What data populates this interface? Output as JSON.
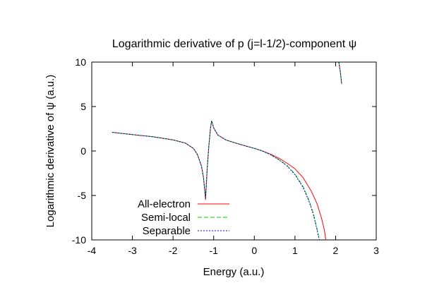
{
  "chart_data": {
    "type": "line",
    "title": "Logarithmic derivative of p (j=l-1/2)-component ψ",
    "xlabel": "Energy (a.u.)",
    "ylabel": "Logarithmic derivative of ψ (a.u.)",
    "xlim": [
      -4,
      3
    ],
    "ylim": [
      -10,
      10
    ],
    "xticks": [
      -4,
      -3,
      -2,
      -1,
      0,
      1,
      2,
      3
    ],
    "yticks": [
      -10,
      -5,
      0,
      5,
      10
    ],
    "xtick_labels": [
      "-4",
      "-3",
      "-2",
      "-1",
      "0",
      "1",
      "2",
      "3"
    ],
    "ytick_labels": [
      "-10",
      "-5",
      "0",
      "5",
      "10"
    ],
    "grid": false,
    "legend_position": "bottom-left",
    "series": [
      {
        "name": "All-electron",
        "color": "#ff0000",
        "dash": "solid",
        "segments": [
          [
            [
              -3.5,
              2.1
            ],
            [
              -3.0,
              1.85
            ],
            [
              -2.5,
              1.6
            ],
            [
              -2.0,
              1.25
            ],
            [
              -1.7,
              0.9
            ],
            [
              -1.5,
              0.3
            ],
            [
              -1.4,
              -0.4
            ],
            [
              -1.3,
              -1.7
            ],
            [
              -1.25,
              -3.0
            ],
            [
              -1.2,
              -5.5
            ],
            [
              -1.16,
              -2.0
            ],
            [
              -1.12,
              0.5
            ],
            [
              -1.08,
              2.5
            ],
            [
              -1.05,
              3.4
            ],
            [
              -1.0,
              2.6
            ],
            [
              -0.9,
              1.8
            ],
            [
              -0.7,
              1.25
            ],
            [
              -0.5,
              0.95
            ],
            [
              -0.2,
              0.55
            ],
            [
              0.0,
              0.3
            ],
            [
              0.2,
              0.0
            ],
            [
              0.4,
              -0.35
            ],
            [
              0.6,
              -0.8
            ],
            [
              0.8,
              -1.35
            ],
            [
              1.0,
              -2.0
            ],
            [
              1.2,
              -3.0
            ],
            [
              1.4,
              -4.5
            ],
            [
              1.55,
              -6.0
            ],
            [
              1.65,
              -7.5
            ],
            [
              1.72,
              -8.8
            ],
            [
              1.76,
              -10.0
            ]
          ],
          [
            [
              2.08,
              10.0
            ],
            [
              2.12,
              8.8
            ],
            [
              2.15,
              7.5
            ]
          ]
        ]
      },
      {
        "name": "Semi-local",
        "color": "#00cc00",
        "dash": "6,3",
        "segments": [
          [
            [
              -3.5,
              2.1
            ],
            [
              -3.0,
              1.85
            ],
            [
              -2.5,
              1.6
            ],
            [
              -2.0,
              1.25
            ],
            [
              -1.7,
              0.9
            ],
            [
              -1.5,
              0.3
            ],
            [
              -1.4,
              -0.4
            ],
            [
              -1.3,
              -1.7
            ],
            [
              -1.25,
              -3.0
            ],
            [
              -1.2,
              -5.3
            ],
            [
              -1.16,
              -2.0
            ],
            [
              -1.12,
              0.5
            ],
            [
              -1.08,
              2.5
            ],
            [
              -1.05,
              3.4
            ],
            [
              -1.0,
              2.6
            ],
            [
              -0.9,
              1.8
            ],
            [
              -0.7,
              1.25
            ],
            [
              -0.5,
              0.95
            ],
            [
              -0.2,
              0.55
            ],
            [
              0.0,
              0.3
            ],
            [
              0.2,
              0.0
            ],
            [
              0.4,
              -0.4
            ],
            [
              0.6,
              -0.95
            ],
            [
              0.8,
              -1.6
            ],
            [
              1.0,
              -2.6
            ],
            [
              1.2,
              -4.0
            ],
            [
              1.35,
              -5.6
            ],
            [
              1.45,
              -7.0
            ],
            [
              1.53,
              -8.5
            ],
            [
              1.6,
              -10.0
            ]
          ],
          [
            [
              2.08,
              10.0
            ],
            [
              2.12,
              8.8
            ],
            [
              2.15,
              7.5
            ]
          ]
        ]
      },
      {
        "name": "Separable",
        "color": "#0000cc",
        "dash": "2,2",
        "segments": [
          [
            [
              -3.5,
              2.1
            ],
            [
              -3.0,
              1.85
            ],
            [
              -2.5,
              1.6
            ],
            [
              -2.0,
              1.25
            ],
            [
              -1.7,
              0.9
            ],
            [
              -1.5,
              0.3
            ],
            [
              -1.4,
              -0.4
            ],
            [
              -1.3,
              -1.7
            ],
            [
              -1.25,
              -3.0
            ],
            [
              -1.2,
              -5.3
            ],
            [
              -1.16,
              -2.0
            ],
            [
              -1.12,
              0.5
            ],
            [
              -1.08,
              2.5
            ],
            [
              -1.05,
              3.4
            ],
            [
              -1.0,
              2.6
            ],
            [
              -0.9,
              1.8
            ],
            [
              -0.7,
              1.25
            ],
            [
              -0.5,
              0.95
            ],
            [
              -0.2,
              0.55
            ],
            [
              0.0,
              0.3
            ],
            [
              0.2,
              0.0
            ],
            [
              0.4,
              -0.42
            ],
            [
              0.6,
              -0.98
            ],
            [
              0.8,
              -1.65
            ],
            [
              1.0,
              -2.65
            ],
            [
              1.2,
              -4.1
            ],
            [
              1.35,
              -5.7
            ],
            [
              1.45,
              -7.1
            ],
            [
              1.53,
              -8.6
            ],
            [
              1.6,
              -10.0
            ]
          ],
          [
            [
              2.08,
              10.0
            ],
            [
              2.12,
              8.8
            ],
            [
              2.15,
              7.5
            ]
          ]
        ]
      }
    ]
  }
}
